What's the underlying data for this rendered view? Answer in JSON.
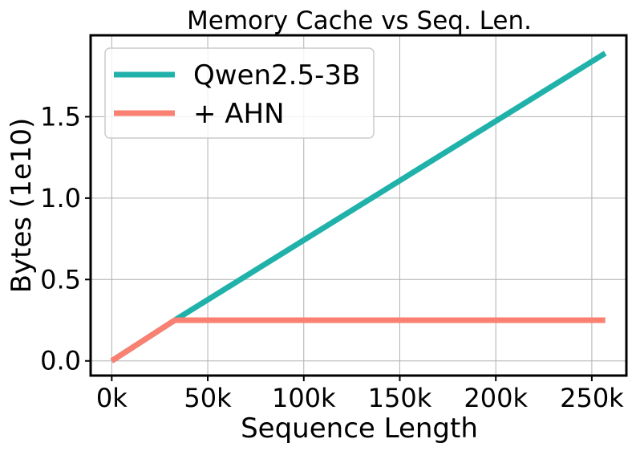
{
  "chart_data": {
    "type": "line",
    "title": "Memory Cache vs Seq. Len.",
    "xlabel": "Sequence Length",
    "ylabel": "Bytes (1e10)",
    "xlim": [
      -11000,
      268000
    ],
    "ylim": [
      -0.09,
      2.0
    ],
    "xticks": [
      0,
      50000,
      100000,
      150000,
      200000,
      250000
    ],
    "xtick_labels": [
      "0k",
      "50k",
      "100k",
      "150k",
      "200k",
      "250k"
    ],
    "yticks": [
      0.0,
      0.5,
      1.0,
      1.5
    ],
    "ytick_labels": [
      "0.0",
      "0.5",
      "1.0",
      "1.5"
    ],
    "grid": true,
    "legend_position": "top-left",
    "series": [
      {
        "name": "Qwen2.5-3B",
        "color": "#20b2aa",
        "x": [
          0,
          32768,
          257000
        ],
        "y": [
          0.0,
          0.25,
          1.89
        ]
      },
      {
        "name": "+ AHN",
        "color": "#fa8072",
        "x": [
          0,
          32768,
          257000
        ],
        "y": [
          0.0,
          0.25,
          0.25
        ]
      }
    ]
  }
}
